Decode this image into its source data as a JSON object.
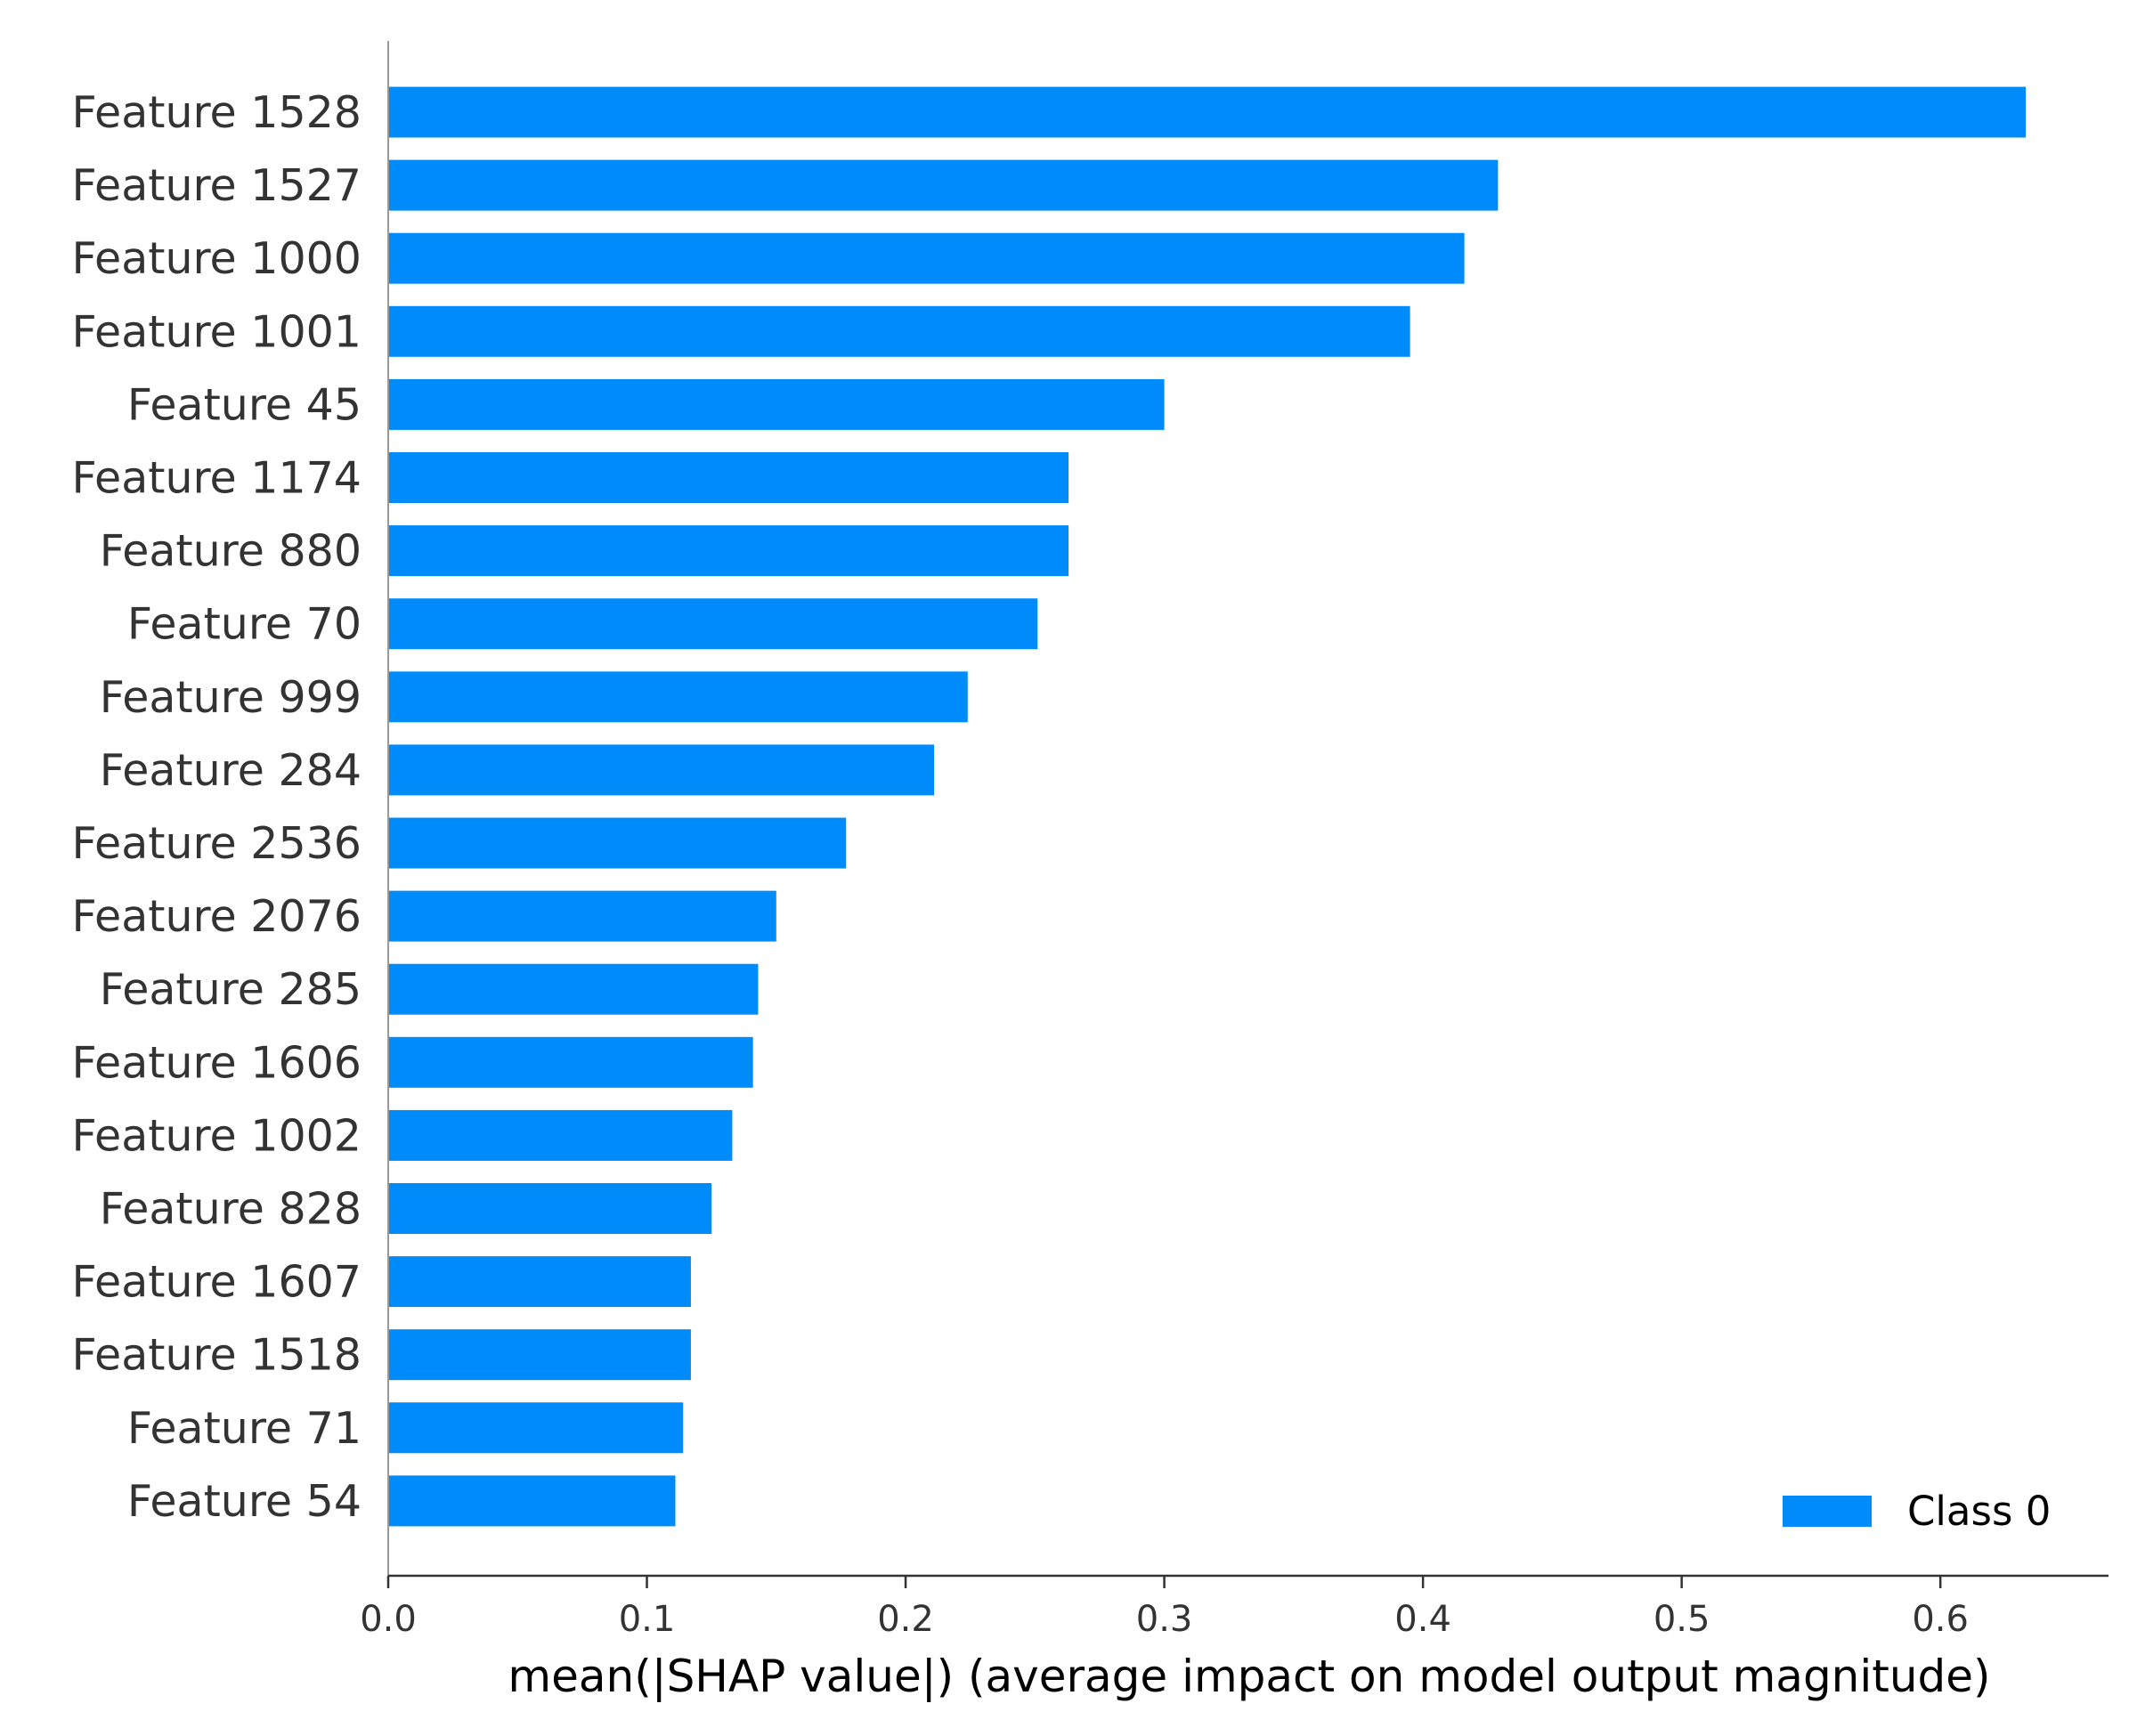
{
  "chart_data": {
    "type": "bar",
    "orientation": "horizontal",
    "categories": [
      "Feature 1528",
      "Feature 1527",
      "Feature 1000",
      "Feature 1001",
      "Feature 45",
      "Feature 1174",
      "Feature 880",
      "Feature 70",
      "Feature 999",
      "Feature 284",
      "Feature 2536",
      "Feature 2076",
      "Feature 285",
      "Feature 1606",
      "Feature 1002",
      "Feature 828",
      "Feature 1607",
      "Feature 1518",
      "Feature 71",
      "Feature 54"
    ],
    "series": [
      {
        "name": "Class 0",
        "color": "#008bfb",
        "values": [
          0.633,
          0.429,
          0.416,
          0.395,
          0.3,
          0.263,
          0.263,
          0.251,
          0.224,
          0.211,
          0.177,
          0.15,
          0.143,
          0.141,
          0.133,
          0.125,
          0.117,
          0.117,
          0.114,
          0.111
        ]
      }
    ],
    "title": "",
    "xlabel": "mean(|SHAP value|) (average impact on model output magnitude)",
    "ylabel": "",
    "xlim": [
      0,
      0.665
    ],
    "xticks": [
      0.0,
      0.1,
      0.2,
      0.3,
      0.4,
      0.5,
      0.6
    ],
    "xtick_labels": [
      "0.0",
      "0.1",
      "0.2",
      "0.3",
      "0.4",
      "0.5",
      "0.6"
    ],
    "grid": false,
    "legend": {
      "position": "bottom-right",
      "entries": [
        "Class 0"
      ]
    },
    "colors": {
      "bar": "#008bfb",
      "axis": "#333333",
      "text": "#333333"
    }
  }
}
